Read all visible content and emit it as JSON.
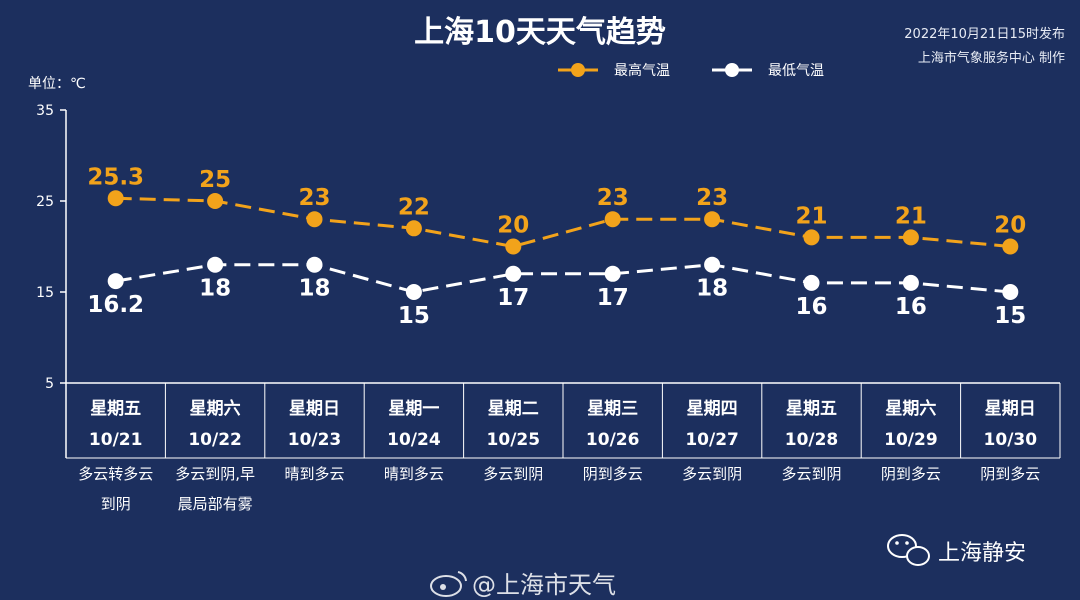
{
  "title": "上海10天天气趋势",
  "publish": {
    "time": "2022年10月21日15时发布",
    "producer": "上海市气象服务中心 制作"
  },
  "unit_label": "单位：℃",
  "watermarks": {
    "wechat": "上海静安",
    "weibo": "@上海市天气"
  },
  "colors": {
    "background": "#1c2f5e",
    "high": "#f2a31b",
    "low": "#ffffff"
  },
  "chart_data": {
    "type": "line",
    "title": "上海10天天气趋势",
    "ylabel": "单位：℃",
    "ylim": [
      5,
      35
    ],
    "yticks": [
      5,
      15,
      25,
      35
    ],
    "grid": false,
    "legend": "top-center",
    "days": [
      "星期五",
      "星期六",
      "星期日",
      "星期一",
      "星期二",
      "星期三",
      "星期四",
      "星期五",
      "星期六",
      "星期日"
    ],
    "dates": [
      "10/21",
      "10/22",
      "10/23",
      "10/24",
      "10/25",
      "10/26",
      "10/27",
      "10/28",
      "10/29",
      "10/30"
    ],
    "conditions": [
      [
        "多云转多云",
        "到阴"
      ],
      [
        "多云到阴,早",
        "晨局部有雾"
      ],
      [
        "晴到多云"
      ],
      [
        "晴到多云"
      ],
      [
        "多云到阴"
      ],
      [
        "阴到多云"
      ],
      [
        "多云到阴"
      ],
      [
        "多云到阴"
      ],
      [
        "阴到多云"
      ],
      [
        "阴到多云"
      ]
    ],
    "series": [
      {
        "name": "最高气温",
        "color": "#f2a31b",
        "values": [
          25.3,
          25,
          23,
          22,
          20,
          23,
          23,
          21,
          21,
          20
        ]
      },
      {
        "name": "最低气温",
        "color": "#ffffff",
        "values": [
          16.2,
          18,
          18,
          15,
          17,
          17,
          18,
          16,
          16,
          15
        ]
      }
    ]
  }
}
